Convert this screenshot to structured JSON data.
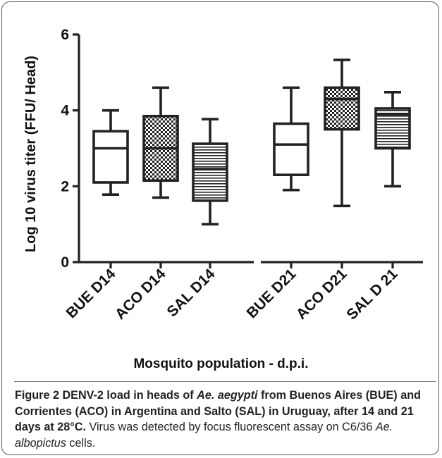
{
  "chart_data": {
    "type": "boxplot",
    "ylabel": "Log 10 virus titer (FFU/ Head)",
    "xlabel": "Mosquito population - d.p.i.",
    "ylim": [
      0,
      6
    ],
    "yticks": [
      0,
      2,
      4,
      6
    ],
    "groups": [
      {
        "label": "BUE D14",
        "min": 1.78,
        "q1": 2.1,
        "median": 3.0,
        "q3": 3.45,
        "max": 4.0,
        "pattern": "none"
      },
      {
        "label": "ACO D14",
        "min": 1.7,
        "q1": 2.15,
        "median": 3.0,
        "q3": 3.85,
        "max": 4.6,
        "pattern": "checker"
      },
      {
        "label": "SAL D14",
        "min": 1.0,
        "q1": 1.62,
        "median": 2.45,
        "q3": 3.12,
        "max": 3.77,
        "pattern": "stripes"
      },
      {
        "label": "BUE  D21",
        "min": 1.9,
        "q1": 2.3,
        "median": 3.1,
        "q3": 3.65,
        "max": 4.6,
        "pattern": "none"
      },
      {
        "label": "ACO D21",
        "min": 1.48,
        "q1": 3.5,
        "median": 4.3,
        "q3": 4.6,
        "max": 5.33,
        "pattern": "checker"
      },
      {
        "label": "SAL D 21",
        "min": 2.0,
        "q1": 3.0,
        "median": 3.9,
        "q3": 4.05,
        "max": 4.48,
        "pattern": "stripes"
      }
    ]
  },
  "caption": {
    "figure_label": "Figure 2",
    "bold_pre": " DENV-2 load in heads of ",
    "bold_italic_1": "Ae. aegypti",
    "bold_post": " from Buenos Aires (BUE) and Corrientes (ACO) in Argentina and Salto (SAL) in Uruguay, after 14 and 21 days at 28°C.",
    "normal_pre": " Virus was detected by focus fluorescent assay on C6/36 ",
    "italic_2": "Ae. albopictus",
    "normal_post": " cells."
  },
  "colors": {
    "stroke": "#222222",
    "axis": "#222222",
    "text": "#111111"
  }
}
